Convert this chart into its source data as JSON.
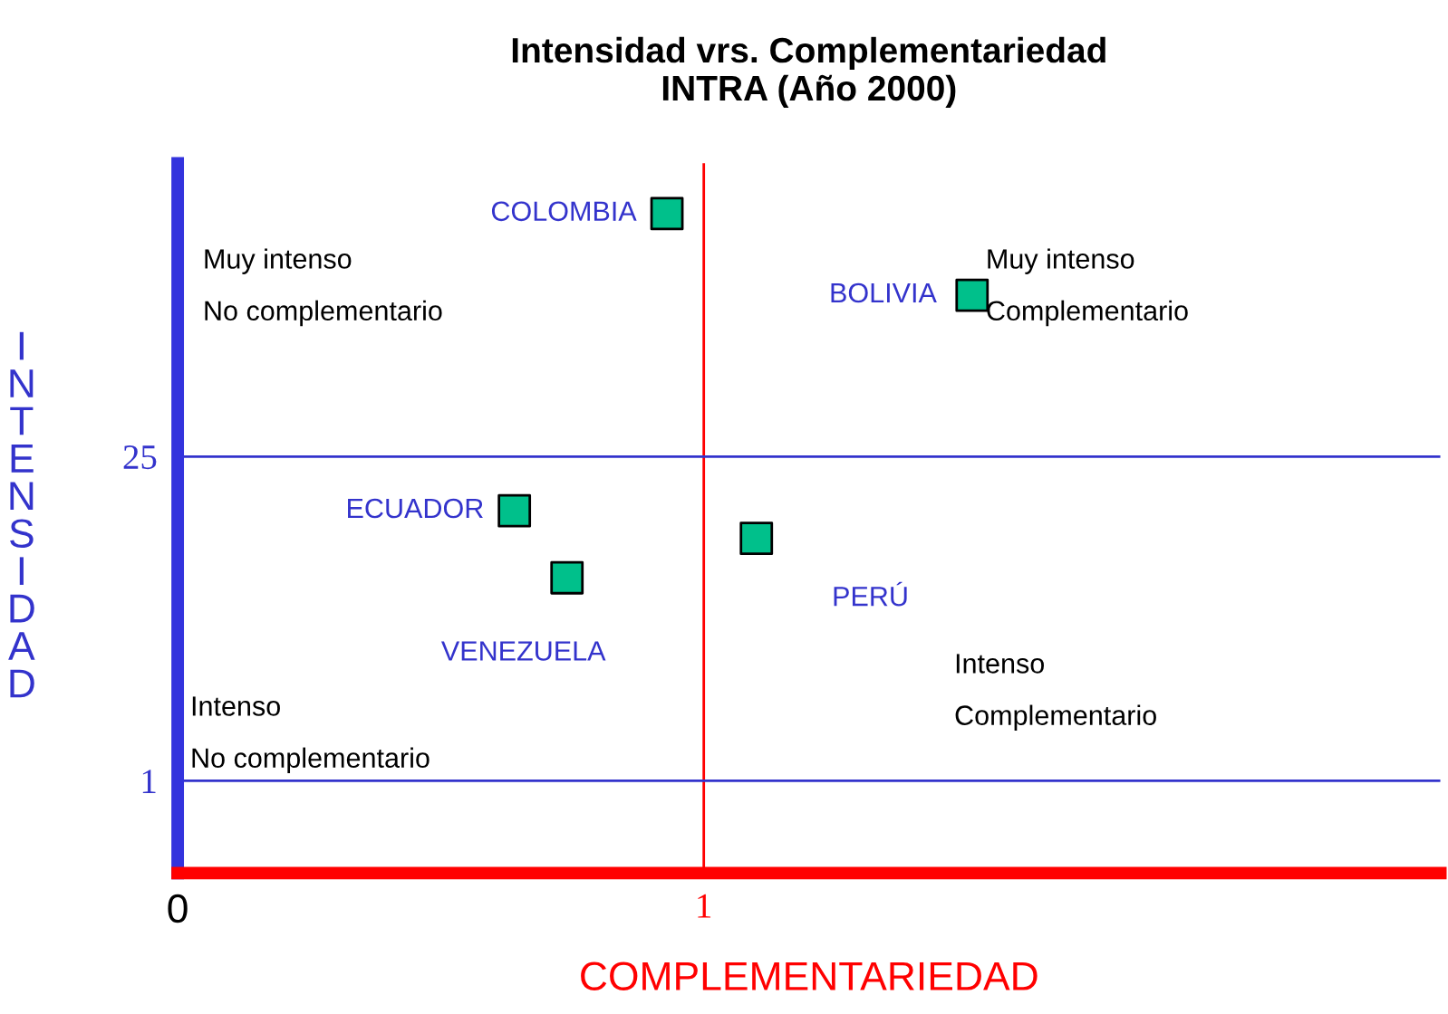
{
  "chart_data": {
    "type": "scatter",
    "title": "Intensidad vrs. Complementariedad\nINTRA (Año 2000)",
    "xlabel": "COMPLEMENTARIEDAD",
    "ylabel": "INTENSIDAD",
    "log": "y",
    "xlim": [
      0,
      2.4
    ],
    "ylim": [
      0.4,
      460
    ],
    "xticks": [
      0,
      1
    ],
    "yticks": [
      1,
      25
    ],
    "marker": "square",
    "grid": false,
    "legend": false,
    "series": [
      {
        "name": "COLOMBIA",
        "color": "#00c08b",
        "x": [
          0.93
        ],
        "values": [
          279
        ]
      },
      {
        "name": "BOLIVIA",
        "color": "#00c08b",
        "x": [
          1.51
        ],
        "values": [
          124
        ]
      },
      {
        "name": "ECUADOR",
        "color": "#00c08b",
        "x": [
          0.64
        ],
        "values": [
          14.6
        ]
      },
      {
        "name": "VENEZUELA",
        "color": "#00c08b",
        "x": [
          0.74
        ],
        "values": [
          7.5
        ]
      },
      {
        "name": "PERÚ",
        "color": "#00c08b",
        "x": [
          1.1
        ],
        "values": [
          11.1
        ]
      }
    ],
    "ref_lines": [
      {
        "axis": "x",
        "value": 1,
        "color": "#ff0000"
      },
      {
        "axis": "y",
        "value": 25,
        "color": "#3333cc"
      },
      {
        "axis": "y",
        "value": 1,
        "color": "#3333cc"
      }
    ],
    "annotations": [
      "Muy intenso\nNo complementario",
      "Muy intenso\nComplementario",
      "Intenso\nNo complementario",
      "Intenso\nComplementario"
    ]
  }
}
